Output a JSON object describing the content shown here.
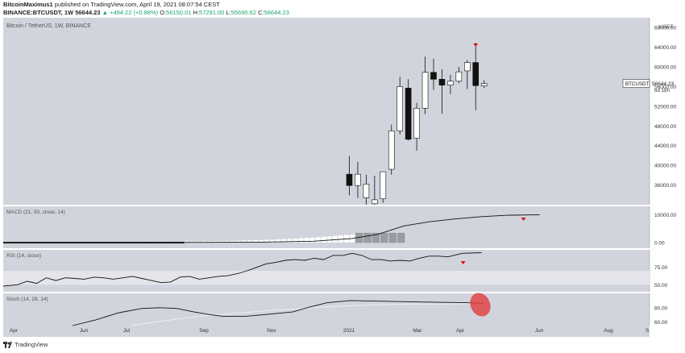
{
  "header": {
    "author": "BitcoinMaximus1",
    "published": "published on TradingView.com, April 19, 2021 08:07:54 CEST",
    "symbol": "BINANCE:BTCUSDT, 1W",
    "last": "56644.23",
    "change": "▲ +494.22 (+0.88%)",
    "o_label": "O:",
    "o": "56150.01",
    "h_label": "H:",
    "h": "57291.00",
    "l_label": "L:",
    "l": "55690.62",
    "c_label": "C:",
    "c": "56644.23"
  },
  "footer": {
    "brand": "TradingView"
  },
  "colors": {
    "panel_bg": "#d1d4dc",
    "axis_bg": "#ffffff",
    "arrow": "#e0101a",
    "highlight": "#e04040"
  },
  "chart_data": [
    {
      "type": "candlestick",
      "title": "Bitcoin / TetherUS, 1W, BINANCE",
      "currency": "USDT",
      "price_label": "BTCUSDT",
      "last_price": 56644.23,
      "countdown": "6d 18h",
      "yticks": [
        "36000.00",
        "40000.00",
        "44000.00",
        "48000.00",
        "52000.00",
        "56000.00",
        "60000.00",
        "64000.00",
        "68000.00"
      ],
      "ylim": [
        32000,
        70000
      ],
      "candles": [
        {
          "o": 38200,
          "h": 41900,
          "l": 33900,
          "c": 35900
        },
        {
          "o": 35900,
          "h": 40700,
          "l": 33400,
          "c": 38200
        },
        {
          "o": 33400,
          "h": 38100,
          "l": 30000,
          "c": 36200
        },
        {
          "o": 32200,
          "h": 37900,
          "l": 31600,
          "c": 33000
        },
        {
          "o": 33200,
          "h": 38600,
          "l": 32400,
          "c": 38700
        },
        {
          "o": 39200,
          "h": 48300,
          "l": 38100,
          "c": 47000
        },
        {
          "o": 47000,
          "h": 58000,
          "l": 46300,
          "c": 56000
        },
        {
          "o": 55700,
          "h": 57500,
          "l": 45000,
          "c": 45300
        },
        {
          "o": 45500,
          "h": 52700,
          "l": 43000,
          "c": 51600
        },
        {
          "o": 51600,
          "h": 62100,
          "l": 50400,
          "c": 58900
        },
        {
          "o": 58900,
          "h": 61700,
          "l": 55300,
          "c": 57500
        },
        {
          "o": 57500,
          "h": 59500,
          "l": 50500,
          "c": 56300
        },
        {
          "o": 56300,
          "h": 58400,
          "l": 54500,
          "c": 57100
        },
        {
          "o": 57100,
          "h": 60000,
          "l": 56700,
          "c": 59000
        },
        {
          "o": 59200,
          "h": 61400,
          "l": 55500,
          "c": 60900
        },
        {
          "o": 60900,
          "h": 64900,
          "l": 51200,
          "c": 56200
        },
        {
          "o": 56150.01,
          "h": 57291,
          "l": 55690.62,
          "c": 56644.23
        }
      ],
      "arrow_index": 15
    },
    {
      "type": "line",
      "title": "MACD (21, 50, close, 14)",
      "yticks": [
        "0.00",
        "10000.00"
      ],
      "ylim": [
        -2000,
        13000
      ],
      "hist_white_start": 0.28,
      "hist_gray_start": 0.545,
      "macd_points": [
        [
          0.0,
          0
        ],
        [
          0.2,
          0
        ],
        [
          0.3,
          100
        ],
        [
          0.4,
          200
        ],
        [
          0.48,
          500
        ],
        [
          0.54,
          1500
        ],
        [
          0.58,
          3000
        ],
        [
          0.62,
          6000
        ],
        [
          0.66,
          7500
        ],
        [
          0.7,
          8500
        ],
        [
          0.74,
          9300
        ],
        [
          0.78,
          9800
        ],
        [
          0.83,
          10000
        ]
      ],
      "arrow_x": 0.805
    },
    {
      "type": "line",
      "title": "RSI (14, close)",
      "yticks": [
        "50.00",
        "75.00"
      ],
      "ylim": [
        40,
        100
      ],
      "band": [
        50,
        70
      ],
      "values": [
        [
          0.0,
          48
        ],
        [
          0.03,
          50
        ],
        [
          0.05,
          55
        ],
        [
          0.07,
          52
        ],
        [
          0.09,
          60
        ],
        [
          0.11,
          56
        ],
        [
          0.13,
          60
        ],
        [
          0.15,
          59
        ],
        [
          0.17,
          58
        ],
        [
          0.19,
          61
        ],
        [
          0.21,
          60
        ],
        [
          0.23,
          58
        ],
        [
          0.25,
          60
        ],
        [
          0.27,
          62
        ],
        [
          0.29,
          59
        ],
        [
          0.31,
          56
        ],
        [
          0.33,
          53
        ],
        [
          0.35,
          54
        ],
        [
          0.37,
          61
        ],
        [
          0.39,
          62
        ],
        [
          0.41,
          58
        ],
        [
          0.43,
          60
        ],
        [
          0.45,
          62
        ],
        [
          0.47,
          63
        ],
        [
          0.49,
          66
        ],
        [
          0.51,
          70
        ],
        [
          0.53,
          75
        ],
        [
          0.55,
          80
        ],
        [
          0.57,
          82
        ],
        [
          0.59,
          85
        ],
        [
          0.61,
          86
        ],
        [
          0.63,
          85
        ],
        [
          0.65,
          88
        ],
        [
          0.67,
          86
        ],
        [
          0.69,
          92
        ],
        [
          0.71,
          92
        ],
        [
          0.73,
          95
        ],
        [
          0.75,
          92
        ],
        [
          0.77,
          86
        ],
        [
          0.79,
          86
        ],
        [
          0.81,
          84
        ],
        [
          0.83,
          85
        ],
        [
          0.85,
          84
        ],
        [
          0.87,
          88
        ],
        [
          0.89,
          91
        ],
        [
          0.91,
          91
        ],
        [
          0.93,
          90
        ],
        [
          0.96,
          95
        ],
        [
          1.0,
          96
        ]
      ],
      "arrow_x": 0.805
    },
    {
      "type": "line",
      "title": "Stoch (14, 28, 14)",
      "yticks": [
        "60.00",
        "80.00"
      ],
      "ylim": [
        55,
        100
      ],
      "k": [
        [
          0.12,
          55
        ],
        [
          0.16,
          63
        ],
        [
          0.2,
          73
        ],
        [
          0.24,
          79
        ],
        [
          0.27,
          80
        ],
        [
          0.3,
          79
        ],
        [
          0.33,
          74
        ],
        [
          0.36,
          70
        ],
        [
          0.38,
          68
        ],
        [
          0.42,
          68
        ],
        [
          0.46,
          71
        ],
        [
          0.5,
          74
        ],
        [
          0.53,
          81
        ],
        [
          0.56,
          87
        ],
        [
          0.6,
          90
        ],
        [
          0.66,
          89
        ],
        [
          0.72,
          88
        ],
        [
          0.8,
          87
        ],
        [
          0.83,
          86
        ]
      ],
      "d": [
        [
          0.22,
          55
        ],
        [
          0.28,
          62
        ],
        [
          0.34,
          68
        ],
        [
          0.4,
          72
        ],
        [
          0.46,
          76
        ],
        [
          0.52,
          79
        ],
        [
          0.58,
          82
        ],
        [
          0.64,
          84
        ],
        [
          0.7,
          85
        ],
        [
          0.76,
          85
        ],
        [
          0.83,
          86
        ]
      ]
    }
  ],
  "time_axis": [
    "Apr",
    "Jun",
    "Jul",
    "Sep",
    "Nov",
    "2021",
    "Mar",
    "Apr",
    "Jun",
    "Aug",
    "S"
  ]
}
